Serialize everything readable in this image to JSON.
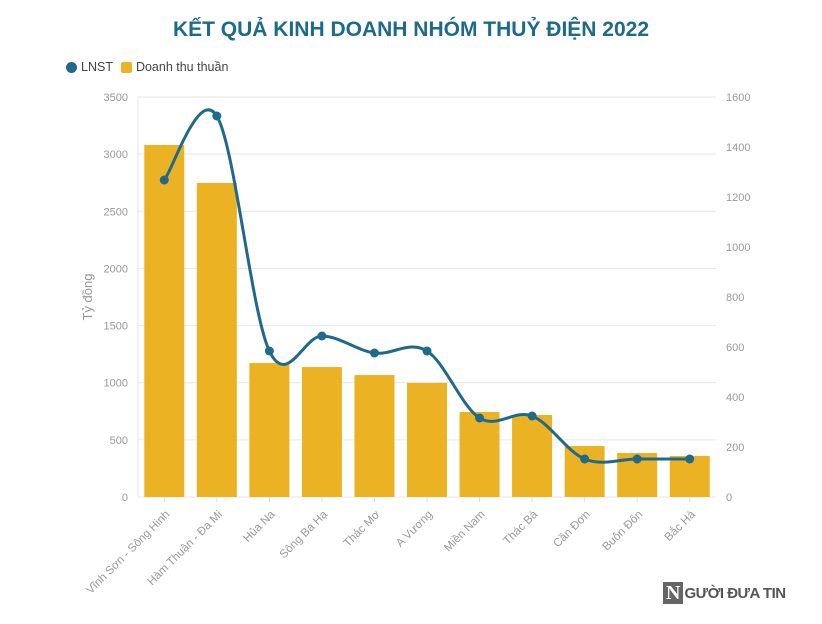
{
  "chart_data": {
    "type": "bar+line",
    "title": "KẾT QUẢ KINH DOANH NHÓM THUỶ ĐIỆN 2022",
    "ylabel": "Tỷ đồng",
    "xlabel": "",
    "legend_position": "top-left",
    "grid": true,
    "categories": [
      "Vĩnh Sơn - Sông Hinh",
      "Hàm Thuận - Đa Mi",
      "Hủa Na",
      "Sông Ba Hạ",
      "Thác Mơ",
      "A Vương",
      "Miền Nam",
      "Thác Bà",
      "Cần Đơn",
      "Buôn Đôn",
      "Bắc Hà"
    ],
    "ylim": [
      0,
      3500
    ],
    "yticks": [
      0,
      500,
      1000,
      1500,
      2000,
      2500,
      3000,
      3500
    ],
    "y2lim": [
      0,
      1600
    ],
    "y2ticks": [
      0,
      200,
      400,
      600,
      800,
      1000,
      1200,
      1400,
      1600
    ],
    "series": [
      {
        "name": "LNST",
        "type": "line",
        "axis": "right",
        "color": "#1f6a8a",
        "values": [
          1268,
          1524,
          584,
          644,
          576,
          584,
          316,
          324,
          152,
          152,
          152
        ]
      },
      {
        "name": "Doanh thu thuần",
        "type": "bar",
        "axis": "left",
        "color": "#ebb323",
        "values": [
          3080,
          2748,
          1172,
          1137,
          1067,
          998,
          744,
          718,
          446,
          385,
          359
        ]
      }
    ]
  },
  "watermark": {
    "letter": "N",
    "text": "GƯỜI ĐƯA TIN"
  }
}
